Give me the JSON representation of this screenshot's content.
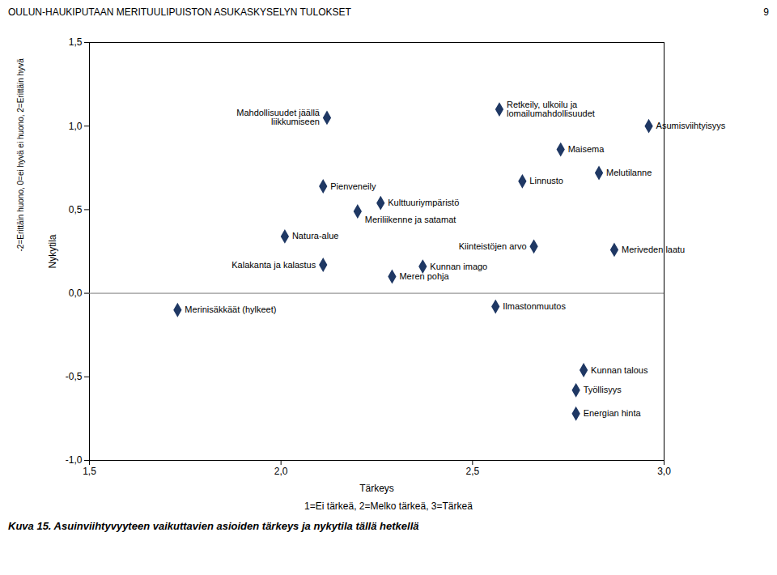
{
  "chart_data": {
    "type": "scatter",
    "title": "OULUN-HAUKIPUTAAN MERITUULIPUISTON ASUKASKYSELYN TULOKSET",
    "page_number": "9",
    "xlabel": "Tärkeys",
    "xlabel_note": "1=Ei tärkeä, 2=Melko tärkeä, 3=Tärkeä",
    "ylabel": "Nykytila",
    "ylabel_note": "-2=Erittäin huono, 0=ei hyvä ei huono, 2=Erittäin hyvä",
    "caption": "Kuva 15. Asuinviihtyvyyteen vaikuttavien asioiden tärkeys ja nykytila tällä hetkellä",
    "color": "#1f3864",
    "marker": "diamond",
    "xlim": [
      1.5,
      3.0
    ],
    "ylim": [
      -1.0,
      1.5
    ],
    "xticks": [
      {
        "value": 1.5,
        "label": "1,5"
      },
      {
        "value": 2.0,
        "label": "2,0"
      },
      {
        "value": 2.5,
        "label": "2,5"
      },
      {
        "value": 3.0,
        "label": "3,0"
      }
    ],
    "yticks": [
      {
        "value": -1.0,
        "label": "-1,0"
      },
      {
        "value": -0.5,
        "label": "-0,5"
      },
      {
        "value": 0.0,
        "label": "0,0"
      },
      {
        "value": 0.5,
        "label": "0,5"
      },
      {
        "value": 1.0,
        "label": "1,0"
      },
      {
        "value": 1.5,
        "label": "1,5"
      }
    ],
    "hline": 0,
    "x": [
      2.12,
      2.57,
      2.96,
      2.73,
      2.63,
      2.83,
      2.11,
      2.26,
      2.2,
      2.01,
      2.66,
      2.87,
      2.11,
      2.37,
      2.29,
      1.73,
      2.56,
      2.79,
      2.77,
      2.77
    ],
    "values": [
      1.05,
      1.1,
      1.0,
      0.86,
      0.67,
      0.72,
      0.64,
      0.54,
      0.49,
      0.34,
      0.28,
      0.26,
      0.17,
      0.16,
      0.1,
      -0.1,
      -0.08,
      -0.46,
      -0.58,
      -0.72
    ],
    "labels": [
      "Mahdollisuudet jäällä\nliikkumiseen",
      "Retkeily, ulkoilu ja\nlomailumahdollisuudet",
      "Asumisviihtyisyys",
      "Maisema",
      "Linnusto",
      "Melutilanne",
      "Pienveneily",
      "Kulttuuriympäristö",
      "Meriliikenne ja satamat",
      "Natura-alue",
      "Kiinteistöjen arvo",
      "Meriveden laatu",
      "Kalakanta ja kalastus",
      "Kunnan imago",
      "Meren pohja",
      "Merinisäkkäät (hylkeet)",
      "Ilmastonmuutos",
      "Kunnan talous",
      "Työllisyys",
      "Energian hinta"
    ]
  }
}
